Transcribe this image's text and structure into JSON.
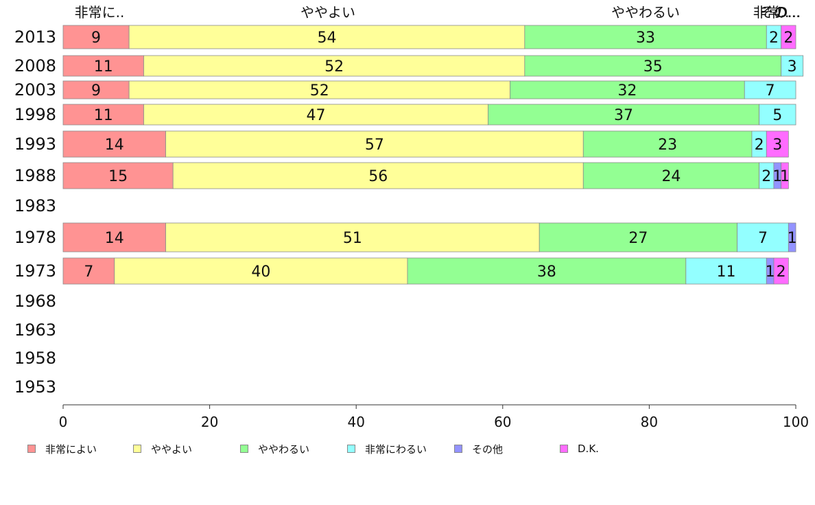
{
  "chart_data": {
    "type": "bar",
    "orientation": "horizontal",
    "stacked": true,
    "categories": [
      "2013",
      "2008",
      "2003",
      "1998",
      "1993",
      "1988",
      "1983",
      "1978",
      "1973",
      "1968",
      "1963",
      "1958",
      "1953"
    ],
    "series": [
      {
        "name": "非常によい",
        "color": "#ff9393",
        "values": [
          9,
          11,
          9,
          11,
          14,
          15,
          null,
          14,
          7,
          null,
          null,
          null,
          null
        ]
      },
      {
        "name": "ややよい",
        "color": "#ffff99",
        "values": [
          54,
          52,
          52,
          47,
          57,
          56,
          null,
          51,
          40,
          null,
          null,
          null,
          null
        ]
      },
      {
        "name": "ややわるい",
        "color": "#93ff93",
        "values": [
          33,
          35,
          32,
          37,
          23,
          24,
          null,
          27,
          38,
          null,
          null,
          null,
          null
        ]
      },
      {
        "name": "非常にわるい",
        "color": "#93ffff",
        "values": [
          2,
          3,
          7,
          5,
          2,
          2,
          null,
          7,
          11,
          null,
          null,
          null,
          null
        ]
      },
      {
        "name": "その他",
        "color": "#9393ff",
        "values": [
          0,
          0,
          0,
          0,
          0,
          1,
          null,
          1,
          1,
          null,
          null,
          null,
          null
        ]
      },
      {
        "name": "D.K.",
        "color": "#ff6cff",
        "values": [
          2,
          0,
          0,
          0,
          3,
          1,
          null,
          0,
          2,
          null,
          null,
          null,
          null
        ]
      }
    ],
    "top_labels": [
      "非常に..",
      "ややよい",
      "ややわるい",
      "非常..",
      "その...",
      "D..."
    ],
    "xticks": [
      "0",
      "20",
      "40",
      "60",
      "80",
      "100"
    ],
    "xlim": [
      0,
      100
    ],
    "legend_position": "bottom",
    "grid": false
  }
}
